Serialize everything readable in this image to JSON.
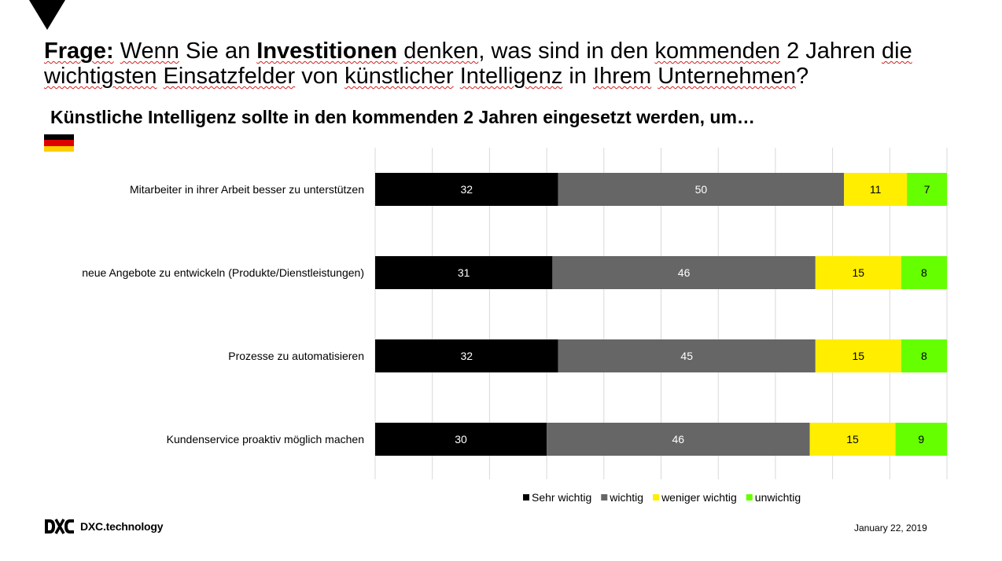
{
  "question": {
    "prefix": "Frage:",
    "parts": [
      {
        "text": " ",
        "style": "plain"
      },
      {
        "text": "Wenn",
        "style": "wavy"
      },
      {
        "text": " Sie an ",
        "style": "plain"
      },
      {
        "text": "Investitionen",
        "style": "bold-wavy"
      },
      {
        "text": " ",
        "style": "plain"
      },
      {
        "text": "denken",
        "style": "wavy"
      },
      {
        "text": ", was sind in den ",
        "style": "plain"
      },
      {
        "text": "kommenden",
        "style": "wavy"
      },
      {
        "text": " 2 Jahren ",
        "style": "plain"
      },
      {
        "text": "die",
        "style": "wavy"
      },
      {
        "text": " ",
        "style": "plain"
      },
      {
        "text": "wichtigsten",
        "style": "wavy"
      },
      {
        "text": " ",
        "style": "plain"
      },
      {
        "text": "Einsatzfelder",
        "style": "wavy"
      },
      {
        "text": " von ",
        "style": "plain"
      },
      {
        "text": "künstlicher",
        "style": "wavy"
      },
      {
        "text": " ",
        "style": "plain"
      },
      {
        "text": "Intelligenz",
        "style": "wavy"
      },
      {
        "text": " in ",
        "style": "plain"
      },
      {
        "text": "Ihrem",
        "style": "wavy"
      },
      {
        "text": " ",
        "style": "plain"
      },
      {
        "text": "Unternehmen",
        "style": "wavy"
      },
      {
        "text": "?",
        "style": "plain"
      }
    ]
  },
  "flag_icon": "germany-flag-icon",
  "footer": {
    "brand": "DXC.technology",
    "date": "January 22, 2019"
  },
  "chart_data": {
    "type": "bar",
    "orientation": "horizontal",
    "stacked": true,
    "title": "Künstliche Intelligenz sollte in den kommenden 2 Jahren eingesetzt werden, um…",
    "xlim": [
      0,
      100
    ],
    "grid": true,
    "legend_position": "bottom",
    "categories": [
      "Mitarbeiter in ihrer Arbeit besser zu unterstützen",
      "neue Angebote zu entwickeln (Produkte/Dienstleistungen)",
      "Prozesse zu automatisieren",
      "Kundenservice proaktiv möglich machen"
    ],
    "series": [
      {
        "name": "Sehr wichtig",
        "color": "#000000",
        "label_color": "#ffffff",
        "values": [
          32,
          31,
          32,
          30
        ]
      },
      {
        "name": "wichtig",
        "color": "#666666",
        "label_color": "#ffffff",
        "values": [
          50,
          46,
          45,
          46
        ]
      },
      {
        "name": "weniger wichtig",
        "color": "#ffee00",
        "label_color": "#000000",
        "values": [
          11,
          15,
          15,
          15
        ]
      },
      {
        "name": "unwichtig",
        "color": "#66ff00",
        "label_color": "#000000",
        "values": [
          7,
          8,
          8,
          9
        ]
      }
    ]
  }
}
